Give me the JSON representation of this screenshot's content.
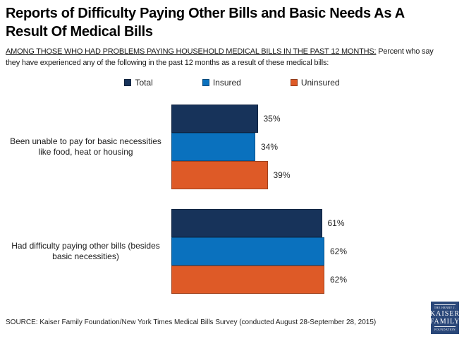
{
  "header": {
    "title": "Reports of Difficulty Paying Other Bills and Basic Needs As A\nResult Of Medical Bills",
    "subtitle_underlined": "AMONG THOSE WHO HAD PROBLEMS PAYING HOUSEHOLD MEDICAL BILLS IN THE PAST 12 MONTHS:",
    "subtitle_rest": " Percent who say\nthey have experienced any of the following in the past 12 months as a result of these medical bills:"
  },
  "chart_data": {
    "type": "bar",
    "orientation": "horizontal",
    "categories": [
      "Been unable to pay for basic necessities\nlike food, heat or housing",
      "Had difficulty paying other bills (besides\nbasic necessities)"
    ],
    "series": [
      {
        "name": "Total",
        "color": "#17335A",
        "values": [
          35,
          61
        ]
      },
      {
        "name": "Insured",
        "color": "#0A71BE",
        "values": [
          34,
          62
        ]
      },
      {
        "name": "Uninsured",
        "color": "#DE5A27",
        "values": [
          39,
          62
        ]
      }
    ],
    "value_suffix": "%",
    "xlim": [
      0,
      100
    ],
    "legend_position": "top",
    "grid": false
  },
  "footer": {
    "source": "SOURCE: Kaiser Family Foundation/New York Times Medical Bills Survey (conducted August 28-September 28, 2015)",
    "logo": {
      "line1": "THE HENRY J.",
      "line2": "KAISER",
      "line3": "FAMILY",
      "line4": "FOUNDATION",
      "color": "#2A4779"
    }
  }
}
